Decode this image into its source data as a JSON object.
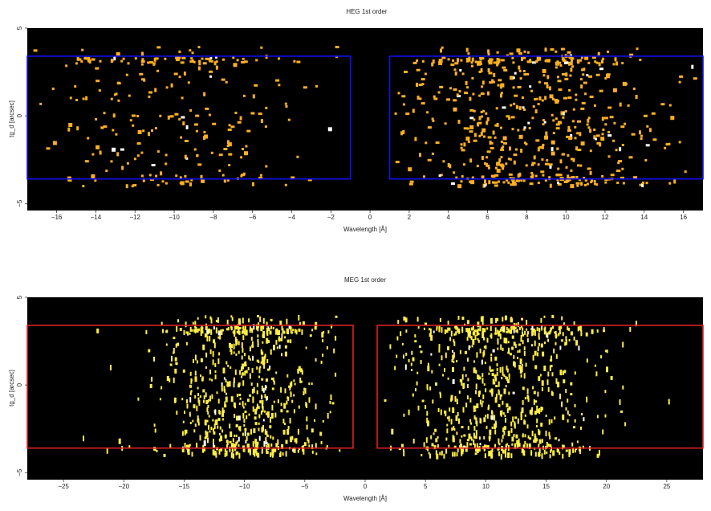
{
  "chart_data": [
    {
      "type": "scatter",
      "title": "HEG 1st order",
      "xlabel": "Wavelength [Å]",
      "ylabel": "tg_d [arcsec]",
      "xlim": [
        -17.5,
        17.0
      ],
      "ylim": [
        -5.4,
        5.0
      ],
      "xticks": [
        -16,
        -14,
        -12,
        -10,
        -8,
        -6,
        -4,
        -2,
        0,
        2,
        4,
        6,
        8,
        10,
        12,
        14,
        16
      ],
      "yticks": [
        -5,
        0,
        5
      ],
      "background": "#000000",
      "point_color": "#ffb020",
      "region_color": "#1010ee",
      "regions": [
        {
          "x": [
            -17.5,
            -1.0
          ],
          "y": [
            -3.6,
            3.4
          ]
        },
        {
          "x": [
            1.0,
            17.0
          ],
          "y": [
            -3.6,
            3.4
          ]
        }
      ],
      "distribution": [
        {
          "x_range": [
            -17.3,
            -1.5
          ],
          "center": -10.5,
          "spread": 3.6,
          "count": 260
        },
        {
          "x_range": [
            1.2,
            16.8
          ],
          "center": 8.0,
          "spread": 3.4,
          "count": 600
        }
      ],
      "grid": false,
      "legend": "none"
    },
    {
      "type": "scatter",
      "title": "MEG 1st order",
      "xlabel": "Wavelength [Å]",
      "ylabel": "tg_d [arcsec]",
      "xlim": [
        -28.0,
        28.0
      ],
      "ylim": [
        -5.4,
        5.0
      ],
      "xticks": [
        -25,
        -20,
        -15,
        -10,
        -5,
        0,
        5,
        10,
        15,
        20,
        25
      ],
      "yticks": [
        -5,
        0,
        5
      ],
      "background": "#000000",
      "point_color": "#ffee44",
      "region_color": "#dd2020",
      "regions": [
        {
          "x": [
            -28.0,
            -1.0
          ],
          "y": [
            -3.6,
            3.4
          ]
        },
        {
          "x": [
            1.0,
            28.0
          ],
          "y": [
            -3.6,
            3.4
          ]
        }
      ],
      "distribution": [
        {
          "x_range": [
            -26.0,
            -2.0
          ],
          "center": -10.0,
          "spread": 3.8,
          "count": 700
        },
        {
          "x_range": [
            1.5,
            26.0
          ],
          "center": 11.0,
          "spread": 4.0,
          "count": 760
        }
      ],
      "grid": false,
      "legend": "none"
    }
  ]
}
